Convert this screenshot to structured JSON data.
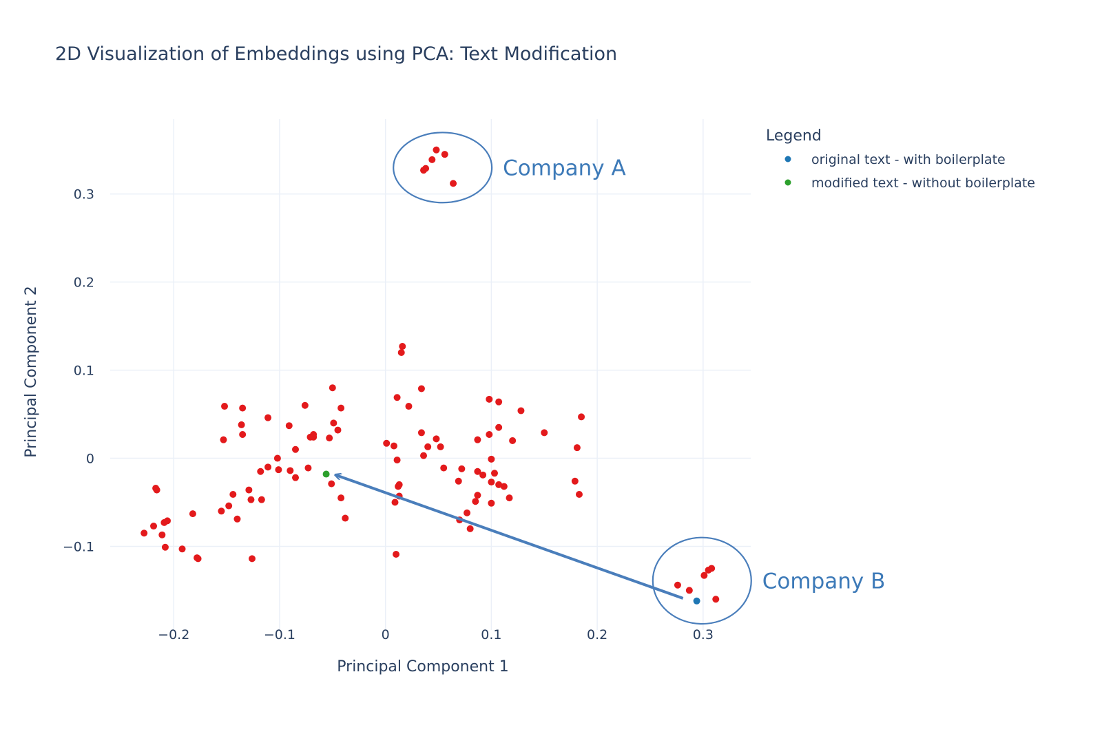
{
  "chart_data": {
    "type": "scatter",
    "title": "2D Visualization of Embeddings using PCA: Text Modification",
    "xlabel": "Principal Component 1",
    "ylabel": "Principal Component 2",
    "xlim": [
      -0.26,
      0.345
    ],
    "ylim": [
      -0.195,
      0.385
    ],
    "xticks": [
      -0.2,
      -0.1,
      0,
      0.1,
      0.2,
      0.3
    ],
    "xtick_labels": [
      "−0.2",
      "−0.1",
      "0",
      "0.1",
      "0.2",
      "0.3"
    ],
    "yticks": [
      -0.1,
      0,
      0.1,
      0.2,
      0.3
    ],
    "ytick_labels": [
      "−0.1",
      "0",
      "0.1",
      "0.2",
      "0.3"
    ],
    "grid": true,
    "legend": {
      "title": "Legend",
      "placement": "right",
      "entries": [
        {
          "label": "original text - with boilerplate",
          "color": "#1f77b4"
        },
        {
          "label": "modified text - without boilerplate",
          "color": "#2ca02c"
        }
      ]
    },
    "series": [
      {
        "color": "#e31a1c",
        "points": [
          [
            0.048,
            0.35
          ],
          [
            0.056,
            0.345
          ],
          [
            0.044,
            0.339
          ],
          [
            0.038,
            0.329
          ],
          [
            0.036,
            0.327
          ],
          [
            0.064,
            0.312
          ],
          [
            0.016,
            0.127
          ],
          [
            0.015,
            0.12
          ],
          [
            0.034,
            0.079
          ],
          [
            0.011,
            0.069
          ],
          [
            0.022,
            0.059
          ],
          [
            0.098,
            0.067
          ],
          [
            0.107,
            0.064
          ],
          [
            0.128,
            0.054
          ],
          [
            0.185,
            0.047
          ],
          [
            0.107,
            0.035
          ],
          [
            0.15,
            0.029
          ],
          [
            0.098,
            0.027
          ],
          [
            0.034,
            0.029
          ],
          [
            0.048,
            0.022
          ],
          [
            0.052,
            0.013
          ],
          [
            0.04,
            0.013
          ],
          [
            0.036,
            0.003
          ],
          [
            0.087,
            0.021
          ],
          [
            0.12,
            0.02
          ],
          [
            0.001,
            0.017
          ],
          [
            0.008,
            0.014
          ],
          [
            0.181,
            0.012
          ],
          [
            0.1,
            -0.001
          ],
          [
            0.011,
            -0.002
          ],
          [
            0.055,
            -0.011
          ],
          [
            0.072,
            -0.012
          ],
          [
            0.087,
            -0.015
          ],
          [
            0.092,
            -0.019
          ],
          [
            0.103,
            -0.017
          ],
          [
            0.069,
            -0.026
          ],
          [
            0.1,
            -0.027
          ],
          [
            0.107,
            -0.03
          ],
          [
            0.112,
            -0.032
          ],
          [
            0.179,
            -0.026
          ],
          [
            0.013,
            -0.03
          ],
          [
            0.012,
            -0.032
          ],
          [
            0.087,
            -0.042
          ],
          [
            0.117,
            -0.045
          ],
          [
            0.183,
            -0.041
          ],
          [
            0.013,
            -0.043
          ],
          [
            0.085,
            -0.049
          ],
          [
            0.1,
            -0.051
          ],
          [
            0.009,
            -0.05
          ],
          [
            0.077,
            -0.062
          ],
          [
            0.07,
            -0.07
          ],
          [
            0.08,
            -0.08
          ],
          [
            0.01,
            -0.109
          ],
          [
            -0.05,
            0.08
          ],
          [
            -0.076,
            0.06
          ],
          [
            -0.152,
            0.059
          ],
          [
            -0.135,
            0.057
          ],
          [
            -0.042,
            0.057
          ],
          [
            -0.111,
            0.046
          ],
          [
            -0.049,
            0.04
          ],
          [
            -0.091,
            0.037
          ],
          [
            -0.136,
            0.038
          ],
          [
            -0.045,
            0.032
          ],
          [
            -0.068,
            0.027
          ],
          [
            -0.071,
            0.024
          ],
          [
            -0.135,
            0.027
          ],
          [
            -0.068,
            0.024
          ],
          [
            -0.053,
            0.023
          ],
          [
            -0.153,
            0.021
          ],
          [
            -0.085,
            0.01
          ],
          [
            -0.102,
            0.0
          ],
          [
            -0.111,
            -0.01
          ],
          [
            -0.101,
            -0.013
          ],
          [
            -0.09,
            -0.014
          ],
          [
            -0.118,
            -0.015
          ],
          [
            -0.073,
            -0.011
          ],
          [
            -0.085,
            -0.022
          ],
          [
            -0.051,
            -0.029
          ],
          [
            -0.129,
            -0.036
          ],
          [
            -0.144,
            -0.041
          ],
          [
            -0.127,
            -0.047
          ],
          [
            -0.117,
            -0.047
          ],
          [
            -0.042,
            -0.045
          ],
          [
            -0.148,
            -0.054
          ],
          [
            -0.155,
            -0.06
          ],
          [
            -0.14,
            -0.069
          ],
          [
            -0.038,
            -0.068
          ],
          [
            -0.182,
            -0.063
          ],
          [
            -0.217,
            -0.034
          ],
          [
            -0.216,
            -0.036
          ],
          [
            -0.206,
            -0.071
          ],
          [
            -0.209,
            -0.073
          ],
          [
            -0.219,
            -0.077
          ],
          [
            -0.228,
            -0.085
          ],
          [
            -0.211,
            -0.087
          ],
          [
            -0.208,
            -0.101
          ],
          [
            -0.192,
            -0.103
          ],
          [
            -0.178,
            -0.113
          ],
          [
            -0.177,
            -0.114
          ],
          [
            -0.126,
            -0.114
          ],
          [
            0.276,
            -0.144
          ],
          [
            0.287,
            -0.15
          ],
          [
            0.308,
            -0.125
          ],
          [
            0.305,
            -0.127
          ],
          [
            0.301,
            -0.133
          ],
          [
            0.312,
            -0.16
          ]
        ]
      },
      {
        "name": "original text - with boilerplate",
        "color": "#1f77b4",
        "points": [
          [
            0.294,
            -0.162
          ]
        ]
      },
      {
        "name": "modified text - without boilerplate",
        "color": "#2ca02c",
        "points": [
          [
            -0.056,
            -0.018
          ]
        ]
      }
    ],
    "annotations": [
      {
        "text": "Company A",
        "center": [
          0.054,
          0.33
        ],
        "rx": 0.0465,
        "ry": 0.0398
      },
      {
        "text": "Company B",
        "center": [
          0.299,
          -0.139
        ],
        "rx": 0.0465,
        "ry": 0.049
      }
    ],
    "arrow": {
      "from": [
        0.281,
        -0.159
      ],
      "to": [
        -0.047,
        -0.019
      ],
      "color": "#4a7ebb"
    }
  }
}
